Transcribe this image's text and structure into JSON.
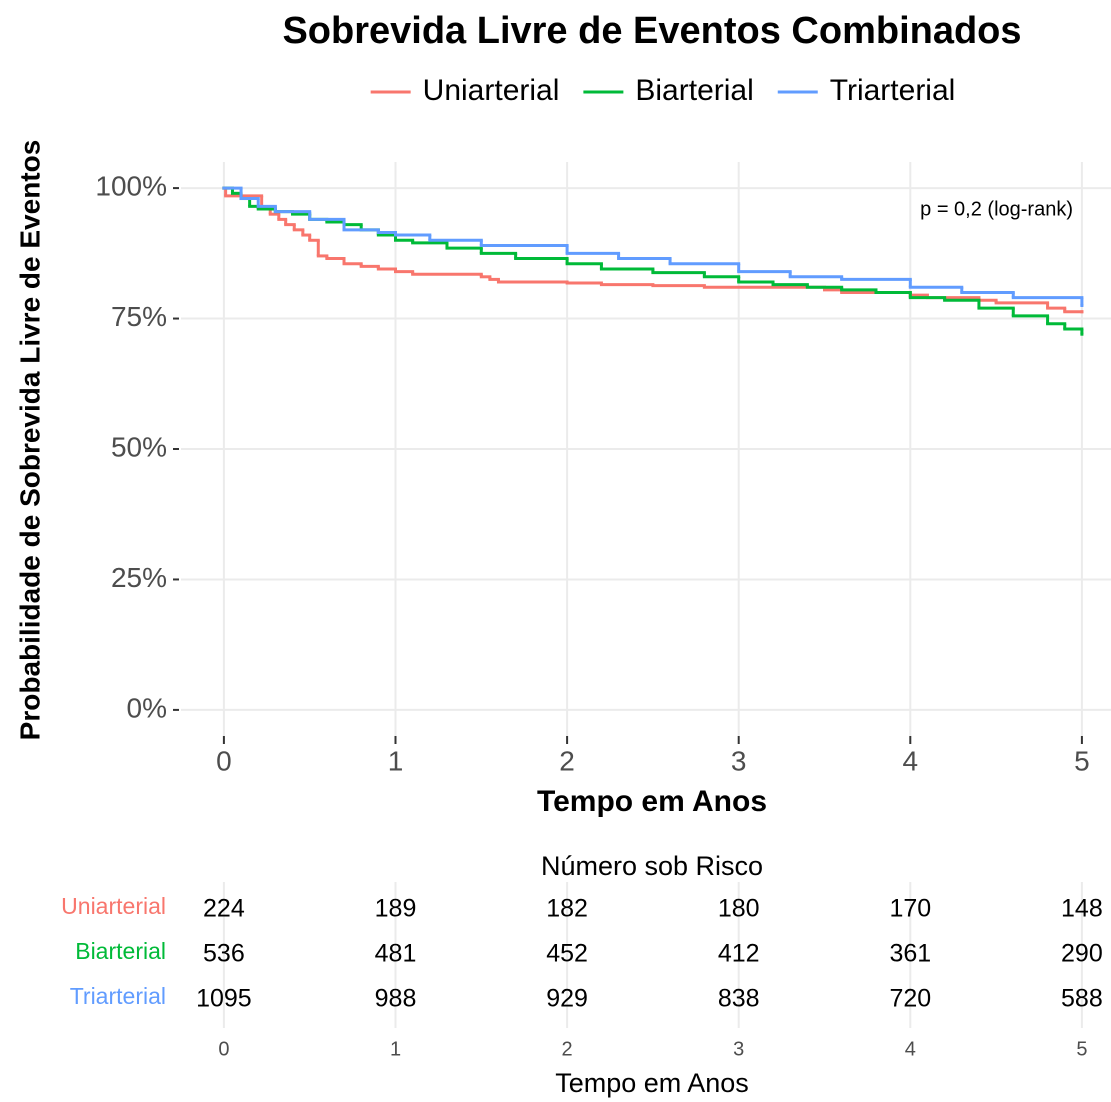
{
  "chart_data": [
    {
      "type": "step",
      "title": "Sobrevida Livre de Eventos Combinados",
      "xlabel": "Tempo em Anos",
      "ylabel": "Probabilidade de Sobrevida Livre de Eventos",
      "annotation": "p = 0,2 (log-rank)",
      "legend": "top",
      "grid": true,
      "xlim": [
        -0.25,
        5.25
      ],
      "ylim": [
        -5,
        105
      ],
      "xticks": [
        0,
        1,
        2,
        3,
        4,
        5
      ],
      "yticks": [
        {
          "value": 0,
          "label": "0%"
        },
        {
          "value": 25,
          "label": "25%"
        },
        {
          "value": 50,
          "label": "50%"
        },
        {
          "value": 75,
          "label": "75%"
        },
        {
          "value": 100,
          "label": "100%"
        }
      ],
      "series": [
        {
          "name": "Uniarterial",
          "color": "#F8766D",
          "x": [
            0,
            0.01,
            0.22,
            0.27,
            0.32,
            0.36,
            0.41,
            0.46,
            0.5,
            0.55,
            0.6,
            0.7,
            0.8,
            0.9,
            1.0,
            1.1,
            1.5,
            1.55,
            1.6,
            2.0,
            2.2,
            2.5,
            2.8,
            3.5,
            3.6,
            4.0,
            4.1,
            4.4,
            4.5,
            4.8,
            4.9,
            5.0
          ],
          "values": [
            100,
            98.5,
            96,
            95,
            94,
            93,
            92,
            91,
            90,
            87,
            86.5,
            85.5,
            85,
            84.5,
            84,
            83.5,
            83,
            82.5,
            82,
            81.8,
            81.5,
            81.3,
            81,
            80.5,
            80,
            79.5,
            79,
            78.5,
            78,
            77,
            76.3,
            76.3
          ]
        },
        {
          "name": "Biarterial",
          "color": "#00BA38",
          "x": [
            0,
            0.05,
            0.1,
            0.15,
            0.2,
            0.3,
            0.4,
            0.5,
            0.6,
            0.7,
            0.8,
            0.9,
            1.0,
            1.1,
            1.3,
            1.5,
            1.7,
            2.0,
            2.2,
            2.5,
            2.8,
            3.0,
            3.2,
            3.4,
            3.6,
            3.8,
            4.0,
            4.2,
            4.4,
            4.6,
            4.8,
            4.9,
            5.0
          ],
          "values": [
            100,
            99,
            98,
            96.5,
            96,
            95.5,
            95,
            94,
            93.5,
            93,
            92,
            91,
            90,
            89.5,
            88.5,
            87.5,
            86.5,
            85.5,
            84.5,
            83.8,
            83,
            82,
            81.5,
            81,
            80.5,
            80,
            79,
            78.5,
            77,
            75.5,
            74,
            73,
            72
          ]
        },
        {
          "name": "Triarterial",
          "color": "#619CFF",
          "x": [
            0,
            0.1,
            0.2,
            0.3,
            0.5,
            0.7,
            0.9,
            1.0,
            1.2,
            1.5,
            2.0,
            2.3,
            2.6,
            3.0,
            3.3,
            3.6,
            4.0,
            4.3,
            4.6,
            5.0
          ],
          "values": [
            100,
            98,
            96.5,
            95.5,
            94,
            92,
            91.5,
            91,
            90,
            89,
            87.5,
            86.5,
            85.5,
            84,
            83,
            82.5,
            81,
            80,
            79,
            77.5
          ]
        }
      ]
    },
    {
      "type": "table",
      "title": "Número sob Risco",
      "xlabel": "Tempo em Anos",
      "xlim": [
        -0.25,
        5.25
      ],
      "x": [
        0,
        1,
        2,
        3,
        4,
        5
      ],
      "xticks": [
        0,
        1,
        2,
        3,
        4,
        5
      ],
      "series": [
        {
          "name": "Uniarterial",
          "color": "#F8766D",
          "values": [
            224,
            189,
            182,
            180,
            170,
            148
          ]
        },
        {
          "name": "Biarterial",
          "color": "#00BA38",
          "values": [
            536,
            481,
            452,
            412,
            361,
            290
          ]
        },
        {
          "name": "Triarterial",
          "color": "#619CFF",
          "values": [
            1095,
            988,
            929,
            838,
            720,
            588
          ]
        }
      ]
    }
  ]
}
